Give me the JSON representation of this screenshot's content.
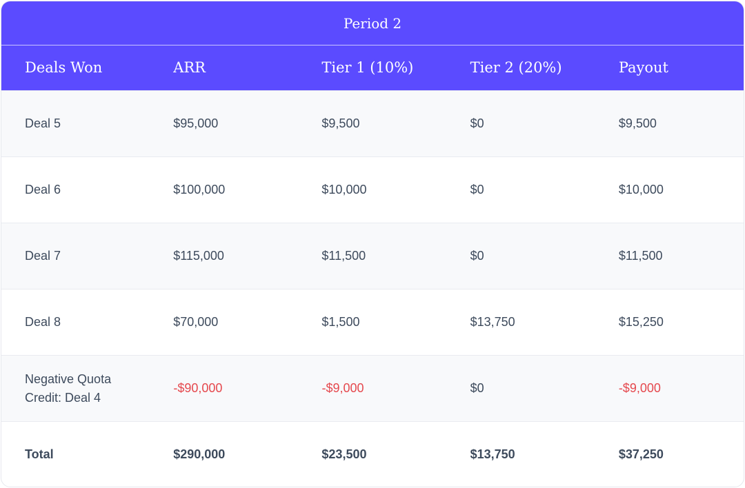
{
  "table": {
    "title": "Period 2",
    "columns": [
      "Deals Won",
      "ARR",
      "Tier 1 (10%)",
      "Tier 2 (20%)",
      "Payout"
    ],
    "rows": [
      {
        "deal": "Deal 5",
        "arr": "$95,000",
        "tier1": "$9,500",
        "tier2": "$0",
        "payout": "$9,500"
      },
      {
        "deal": "Deal 6",
        "arr": "$100,000",
        "tier1": "$10,000",
        "tier2": "$0",
        "payout": "$10,000"
      },
      {
        "deal": "Deal 7",
        "arr": "$115,000",
        "tier1": "$11,500",
        "tier2": "$0",
        "payout": "$11,500"
      },
      {
        "deal": "Deal 8",
        "arr": "$70,000",
        "tier1": "$1,500",
        "tier2": "$13,750",
        "payout": "$15,250"
      },
      {
        "deal": "Negative Quota Credit: Deal 4",
        "arr": "-$90,000",
        "tier1": "-$9,000",
        "tier2": "$0",
        "payout": "-$9,000"
      }
    ],
    "total": {
      "label": "Total",
      "arr": "$290,000",
      "tier1": "$23,500",
      "tier2": "$13,750",
      "payout": "$37,250"
    }
  },
  "colors": {
    "header_bg": "#5b4bff",
    "negative": "#e5484d",
    "text": "#3d4a5c",
    "row_alt": "#f8f9fb"
  }
}
